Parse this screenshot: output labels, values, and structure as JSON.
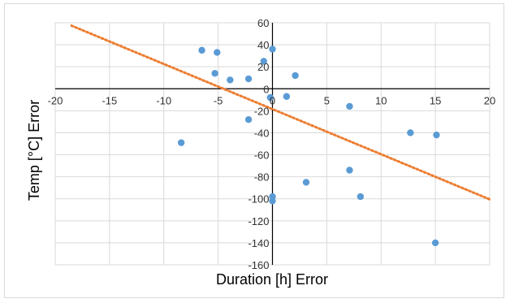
{
  "chart_data": {
    "type": "scatter",
    "title": "",
    "xlabel": "Duration [h] Error",
    "ylabel": "Temp [°C] Error",
    "xlim": [
      -20,
      20
    ],
    "ylim": [
      -160,
      60
    ],
    "x_ticks": [
      -20,
      -15,
      -10,
      -5,
      0,
      5,
      10,
      15,
      20
    ],
    "y_ticks": [
      60,
      40,
      20,
      0,
      -20,
      -40,
      -60,
      -80,
      -100,
      -120,
      -140,
      -160
    ],
    "grid": true,
    "legend": "none",
    "colors": {
      "points": "#5b9bd5",
      "trendline": "#ed7d31",
      "grid": "#d9d9d9",
      "axis": "#000000"
    },
    "series": [
      {
        "points": [
          [
            -6.5,
            35
          ],
          [
            -5.1,
            33
          ],
          [
            -5.3,
            14
          ],
          [
            -3.9,
            8
          ],
          [
            -2.2,
            9
          ],
          [
            -0.8,
            25
          ],
          [
            0.0,
            36
          ],
          [
            -0.2,
            -8
          ],
          [
            -2.2,
            -28
          ],
          [
            2.1,
            12
          ],
          [
            1.3,
            -7
          ],
          [
            -8.4,
            -49
          ],
          [
            7.1,
            -16
          ],
          [
            12.7,
            -40
          ],
          [
            15.1,
            -42
          ],
          [
            7.1,
            -74
          ],
          [
            3.1,
            -85
          ],
          [
            8.1,
            -98
          ],
          [
            0.0,
            -98
          ],
          [
            0.0,
            -102
          ],
          [
            15.0,
            -140
          ]
        ]
      }
    ],
    "trendline": {
      "style": "dotted",
      "slope": -4.1,
      "intercept": -18.5,
      "x_range": [
        -18.5,
        20
      ]
    }
  }
}
